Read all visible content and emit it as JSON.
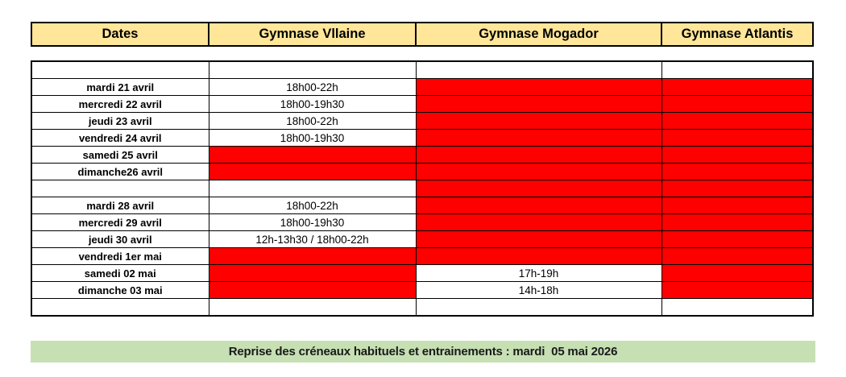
{
  "schedule": {
    "columns": [
      "Dates",
      "Gymnase Vllaine",
      "Gymnase Mogador",
      "Gymnase Atlantis"
    ],
    "rows": [
      {
        "date": "",
        "cells": [
          {
            "text": "",
            "state": "white"
          },
          {
            "text": "",
            "state": "white"
          },
          {
            "text": "",
            "state": "white"
          }
        ]
      },
      {
        "date": "mardi 21 avril",
        "cells": [
          {
            "text": "18h00-22h",
            "state": "white"
          },
          {
            "text": "",
            "state": "red"
          },
          {
            "text": "",
            "state": "red"
          }
        ]
      },
      {
        "date": "mercredi 22 avril",
        "cells": [
          {
            "text": "18h00-19h30",
            "state": "white"
          },
          {
            "text": "",
            "state": "red"
          },
          {
            "text": "",
            "state": "red"
          }
        ]
      },
      {
        "date": "jeudi 23 avril",
        "cells": [
          {
            "text": "18h00-22h",
            "state": "white"
          },
          {
            "text": "",
            "state": "red"
          },
          {
            "text": "",
            "state": "red"
          }
        ]
      },
      {
        "date": "vendredi 24 avril",
        "cells": [
          {
            "text": "18h00-19h30",
            "state": "white"
          },
          {
            "text": "",
            "state": "red"
          },
          {
            "text": "",
            "state": "red"
          }
        ]
      },
      {
        "date": "samedi 25 avril",
        "cells": [
          {
            "text": "",
            "state": "red"
          },
          {
            "text": "",
            "state": "red"
          },
          {
            "text": "",
            "state": "red"
          }
        ]
      },
      {
        "date": "dimanche26 avril",
        "cells": [
          {
            "text": "",
            "state": "red"
          },
          {
            "text": "",
            "state": "red"
          },
          {
            "text": "",
            "state": "red"
          }
        ]
      },
      {
        "date": "",
        "cells": [
          {
            "text": "",
            "state": "white"
          },
          {
            "text": "",
            "state": "red"
          },
          {
            "text": "",
            "state": "red"
          }
        ]
      },
      {
        "date": "mardi 28 avril",
        "cells": [
          {
            "text": "18h00-22h",
            "state": "white"
          },
          {
            "text": "",
            "state": "red"
          },
          {
            "text": "",
            "state": "red"
          }
        ]
      },
      {
        "date": "mercredi 29 avril",
        "cells": [
          {
            "text": "18h00-19h30",
            "state": "white"
          },
          {
            "text": "",
            "state": "red"
          },
          {
            "text": "",
            "state": "red"
          }
        ]
      },
      {
        "date": "jeudi 30 avril",
        "cells": [
          {
            "text": "12h-13h30 / 18h00-22h",
            "state": "white"
          },
          {
            "text": "",
            "state": "red"
          },
          {
            "text": "",
            "state": "red"
          }
        ]
      },
      {
        "date": "vendredi 1er mai",
        "cells": [
          {
            "text": "",
            "state": "red"
          },
          {
            "text": "",
            "state": "red"
          },
          {
            "text": "",
            "state": "red"
          }
        ]
      },
      {
        "date": "samedi 02 mai",
        "cells": [
          {
            "text": "",
            "state": "red"
          },
          {
            "text": "17h-19h",
            "state": "white"
          },
          {
            "text": "",
            "state": "red"
          }
        ]
      },
      {
        "date": "dimanche 03 mai",
        "cells": [
          {
            "text": "",
            "state": "red"
          },
          {
            "text": "14h-18h",
            "state": "white"
          },
          {
            "text": "",
            "state": "red"
          }
        ]
      },
      {
        "date": "",
        "cells": [
          {
            "text": "",
            "state": "white"
          },
          {
            "text": "",
            "state": "white"
          },
          {
            "text": "",
            "state": "white"
          }
        ]
      }
    ]
  },
  "footer": {
    "text": "Reprise des créneaux habituels et entrainements : mardi  05 mai 2026"
  },
  "colors": {
    "header_bg": "#FFE699",
    "closed_red": "#FF0000",
    "footer_bg": "#C6E0B4",
    "border": "#000000"
  }
}
